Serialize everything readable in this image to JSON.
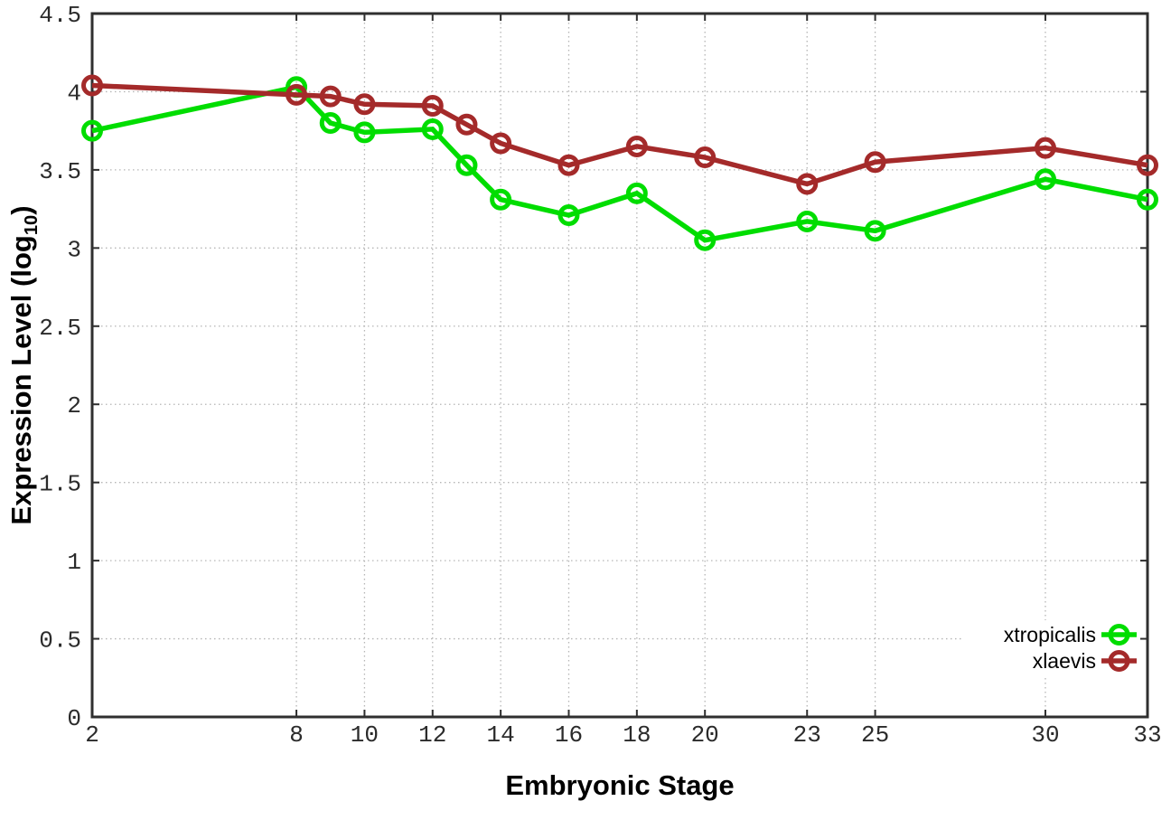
{
  "chart_data": {
    "type": "line",
    "title": "",
    "xlabel": "Embryonic Stage",
    "ylabel": "Expression Level (log10)",
    "ylabel_parts": {
      "pre": "Expression Level (log",
      "sub": "10",
      "post": ")"
    },
    "x": [
      2,
      8,
      9,
      10,
      12,
      13,
      14,
      16,
      18,
      20,
      23,
      25,
      30,
      33
    ],
    "x_ticks": [
      2,
      8,
      10,
      12,
      14,
      16,
      18,
      20,
      23,
      25,
      30,
      33
    ],
    "y_ticks": [
      0,
      0.5,
      1,
      1.5,
      2,
      2.5,
      3,
      3.5,
      4,
      4.5
    ],
    "y_tick_labels": [
      "0",
      "0.5",
      "1",
      "1.5",
      "2",
      "2.5",
      "3",
      "3.5",
      "4",
      "4.5"
    ],
    "xlim": [
      2,
      33
    ],
    "ylim": [
      0,
      4.5
    ],
    "grid": true,
    "legend_position": "bottom-right",
    "series": [
      {
        "name": "xtropicalis",
        "color": "#00dd00",
        "values": [
          3.75,
          4.03,
          3.8,
          3.74,
          3.76,
          3.53,
          3.31,
          3.21,
          3.35,
          3.05,
          3.17,
          3.11,
          3.44,
          3.31
        ]
      },
      {
        "name": "xlaevis",
        "color": "#a42a2a",
        "values": [
          4.04,
          3.98,
          3.97,
          3.92,
          3.91,
          3.79,
          3.67,
          3.53,
          3.65,
          3.58,
          3.41,
          3.55,
          3.64,
          3.53
        ]
      }
    ],
    "style": {
      "axis_color": "#2f2f2f",
      "grid_color": "#b5b5b5",
      "tick_label_color": "#2b2b2b",
      "background": "#ffffff"
    }
  }
}
